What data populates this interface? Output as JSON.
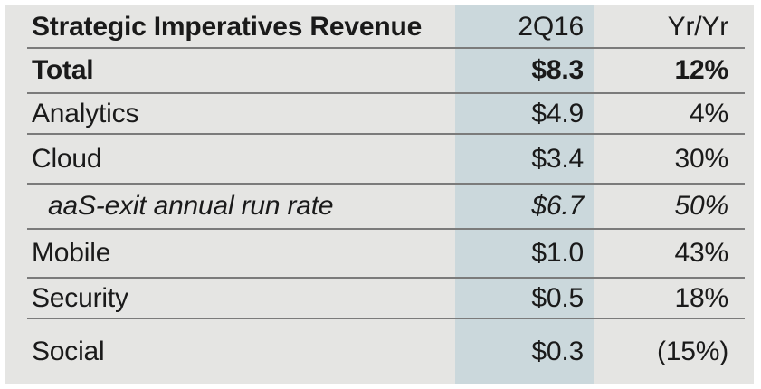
{
  "table": {
    "header": {
      "label": "Strategic Imperatives Revenue",
      "col1": "2Q16",
      "col2": "Yr/Yr"
    },
    "rows": [
      {
        "label": "Total",
        "col1": "$8.3",
        "col2": "12%"
      },
      {
        "label": "Analytics",
        "col1": "$4.9",
        "col2": "4%"
      },
      {
        "label": "Cloud",
        "col1": "$3.4",
        "col2": "30%"
      },
      {
        "label": "aaS-exit annual run rate",
        "col1": "$6.7",
        "col2": "50%"
      },
      {
        "label": "Mobile",
        "col1": "$1.0",
        "col2": "43%"
      },
      {
        "label": "Security",
        "col1": "$0.5",
        "col2": "18%"
      },
      {
        "label": "Social",
        "col1": "$0.3",
        "col2": "(15%)"
      }
    ]
  },
  "colors": {
    "background": "#e5e5e3",
    "highlight_band": "#cbd8dc",
    "rule": "#7b7b7b",
    "text": "#1a1a1a"
  },
  "chart_data": {
    "type": "table",
    "title": "Strategic Imperatives Revenue",
    "columns": [
      "Strategic Imperatives Revenue",
      "2Q16",
      "Yr/Yr"
    ],
    "highlighted_column": "2Q16",
    "rows": [
      {
        "label": "Total",
        "revenue_2q16_billions": 8.3,
        "yr_yr_pct": 12,
        "style": "bold"
      },
      {
        "label": "Analytics",
        "revenue_2q16_billions": 4.9,
        "yr_yr_pct": 4,
        "style": "regular"
      },
      {
        "label": "Cloud",
        "revenue_2q16_billions": 3.4,
        "yr_yr_pct": 30,
        "style": "regular"
      },
      {
        "label": "aaS-exit annual run rate",
        "revenue_2q16_billions": 6.7,
        "yr_yr_pct": 50,
        "style": "italic-indented"
      },
      {
        "label": "Mobile",
        "revenue_2q16_billions": 1.0,
        "yr_yr_pct": 43,
        "style": "regular"
      },
      {
        "label": "Security",
        "revenue_2q16_billions": 0.5,
        "yr_yr_pct": 18,
        "style": "regular"
      },
      {
        "label": "Social",
        "revenue_2q16_billions": 0.3,
        "yr_yr_pct": -15,
        "style": "regular"
      }
    ]
  }
}
